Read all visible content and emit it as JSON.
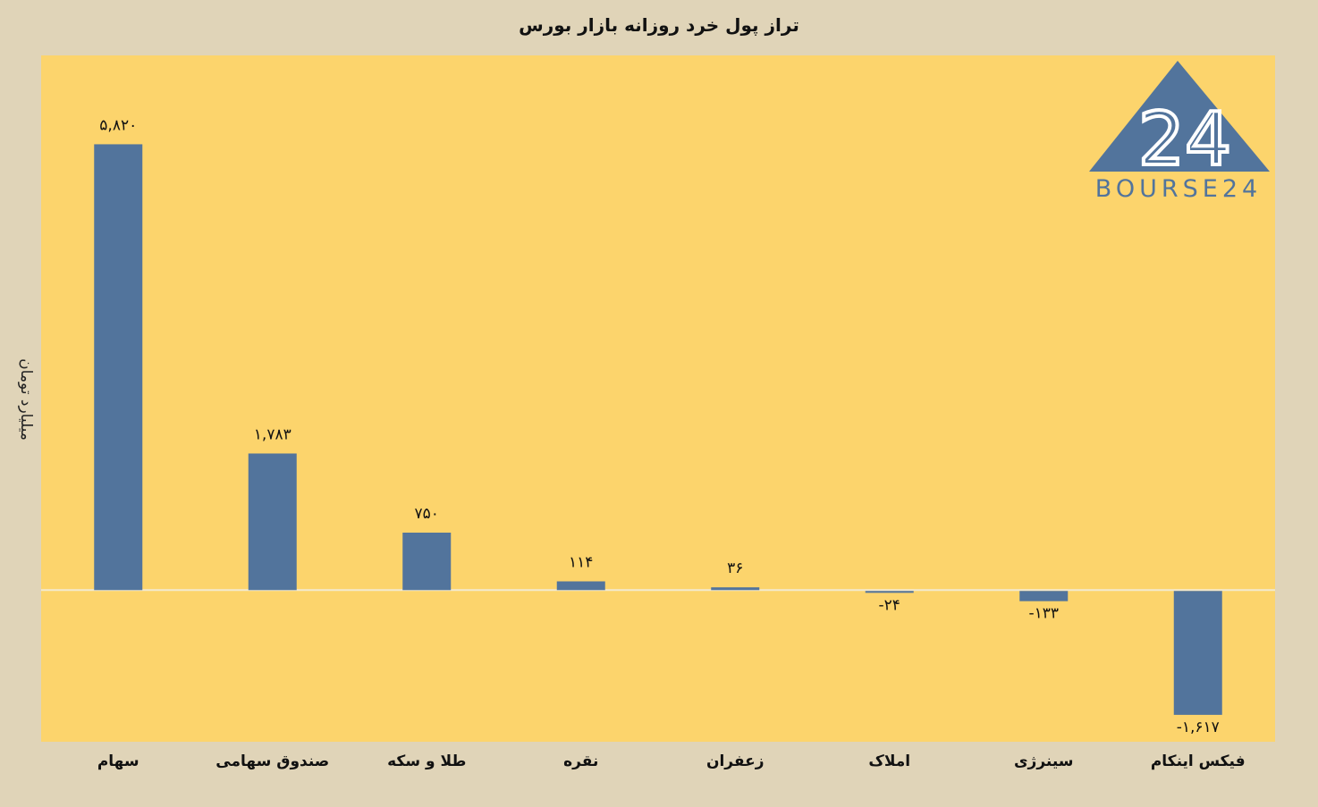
{
  "chart_data": {
    "type": "bar",
    "title": "تراز پول خرد روزانه بازار بورس",
    "ylabel": "میلیارد تومان",
    "xlabel": "",
    "categories": [
      "سهام",
      "صندوق سهامی",
      "طلا و سکه",
      "نقره",
      "زعفران",
      "املاک",
      "سینرژی",
      "فیکس اینکام"
    ],
    "values": [
      5820,
      1783,
      750,
      114,
      36,
      -24,
      -133,
      -1617
    ],
    "value_labels": [
      "۵,۸۲۰",
      "۱,۷۸۳",
      "۷۵۰",
      "۱۱۴",
      "۳۶",
      "-۲۴",
      "-۱۳۳",
      "-۱,۶۱۷"
    ],
    "ylim": [
      -1980,
      6980
    ],
    "grid": false,
    "legend": "none",
    "bar_color": "#52749c",
    "plot_background": "#fcd46c",
    "page_background": "#e0d4b8"
  },
  "logo": {
    "mark": "24",
    "wordmark": "BOURSE24",
    "color": "#52749c"
  }
}
